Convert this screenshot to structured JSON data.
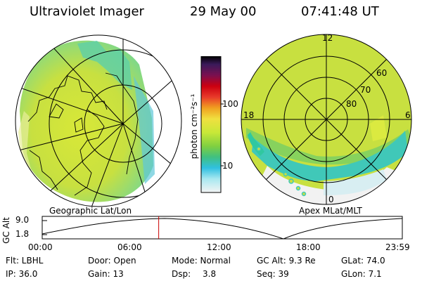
{
  "header": {
    "title": "Ultraviolet Imager",
    "date": "29 May 00",
    "time": "07:41:48 UT"
  },
  "left_panel": {
    "caption": "Geographic Lat/Lon"
  },
  "right_panel": {
    "caption": "Apex MLat/MLT",
    "mlt_labels": {
      "top": "12",
      "left": "18",
      "right": "6",
      "bottom": "0"
    },
    "lat_labels": [
      "60",
      "70",
      "80"
    ]
  },
  "colorbar": {
    "label": "photon cm⁻²s⁻¹",
    "tick_labels": [
      "100",
      "10"
    ],
    "scale": "log"
  },
  "timeline": {
    "ylabel": "GC Alt",
    "y_ticks": [
      "9.0",
      "1.8"
    ],
    "x_ticks": [
      "00:00",
      "06:00",
      "12:00",
      "18:00",
      "23:59"
    ],
    "current_time_fraction": 0.3235,
    "marker_color": "#cc0000"
  },
  "status": {
    "flt": "Flt: LBHL",
    "door": "Door: Open",
    "mode": "Mode: Normal",
    "gc_alt": "GC Alt: 9.3 Re",
    "glat": "GLat: 74.0",
    "ip": "IP: 36.0",
    "gain": "Gain: 13",
    "dsp_label": "Dsp:",
    "dsp_value": "3.8",
    "seq": "Seq: 39",
    "glon": "GLon: 7.1"
  }
}
